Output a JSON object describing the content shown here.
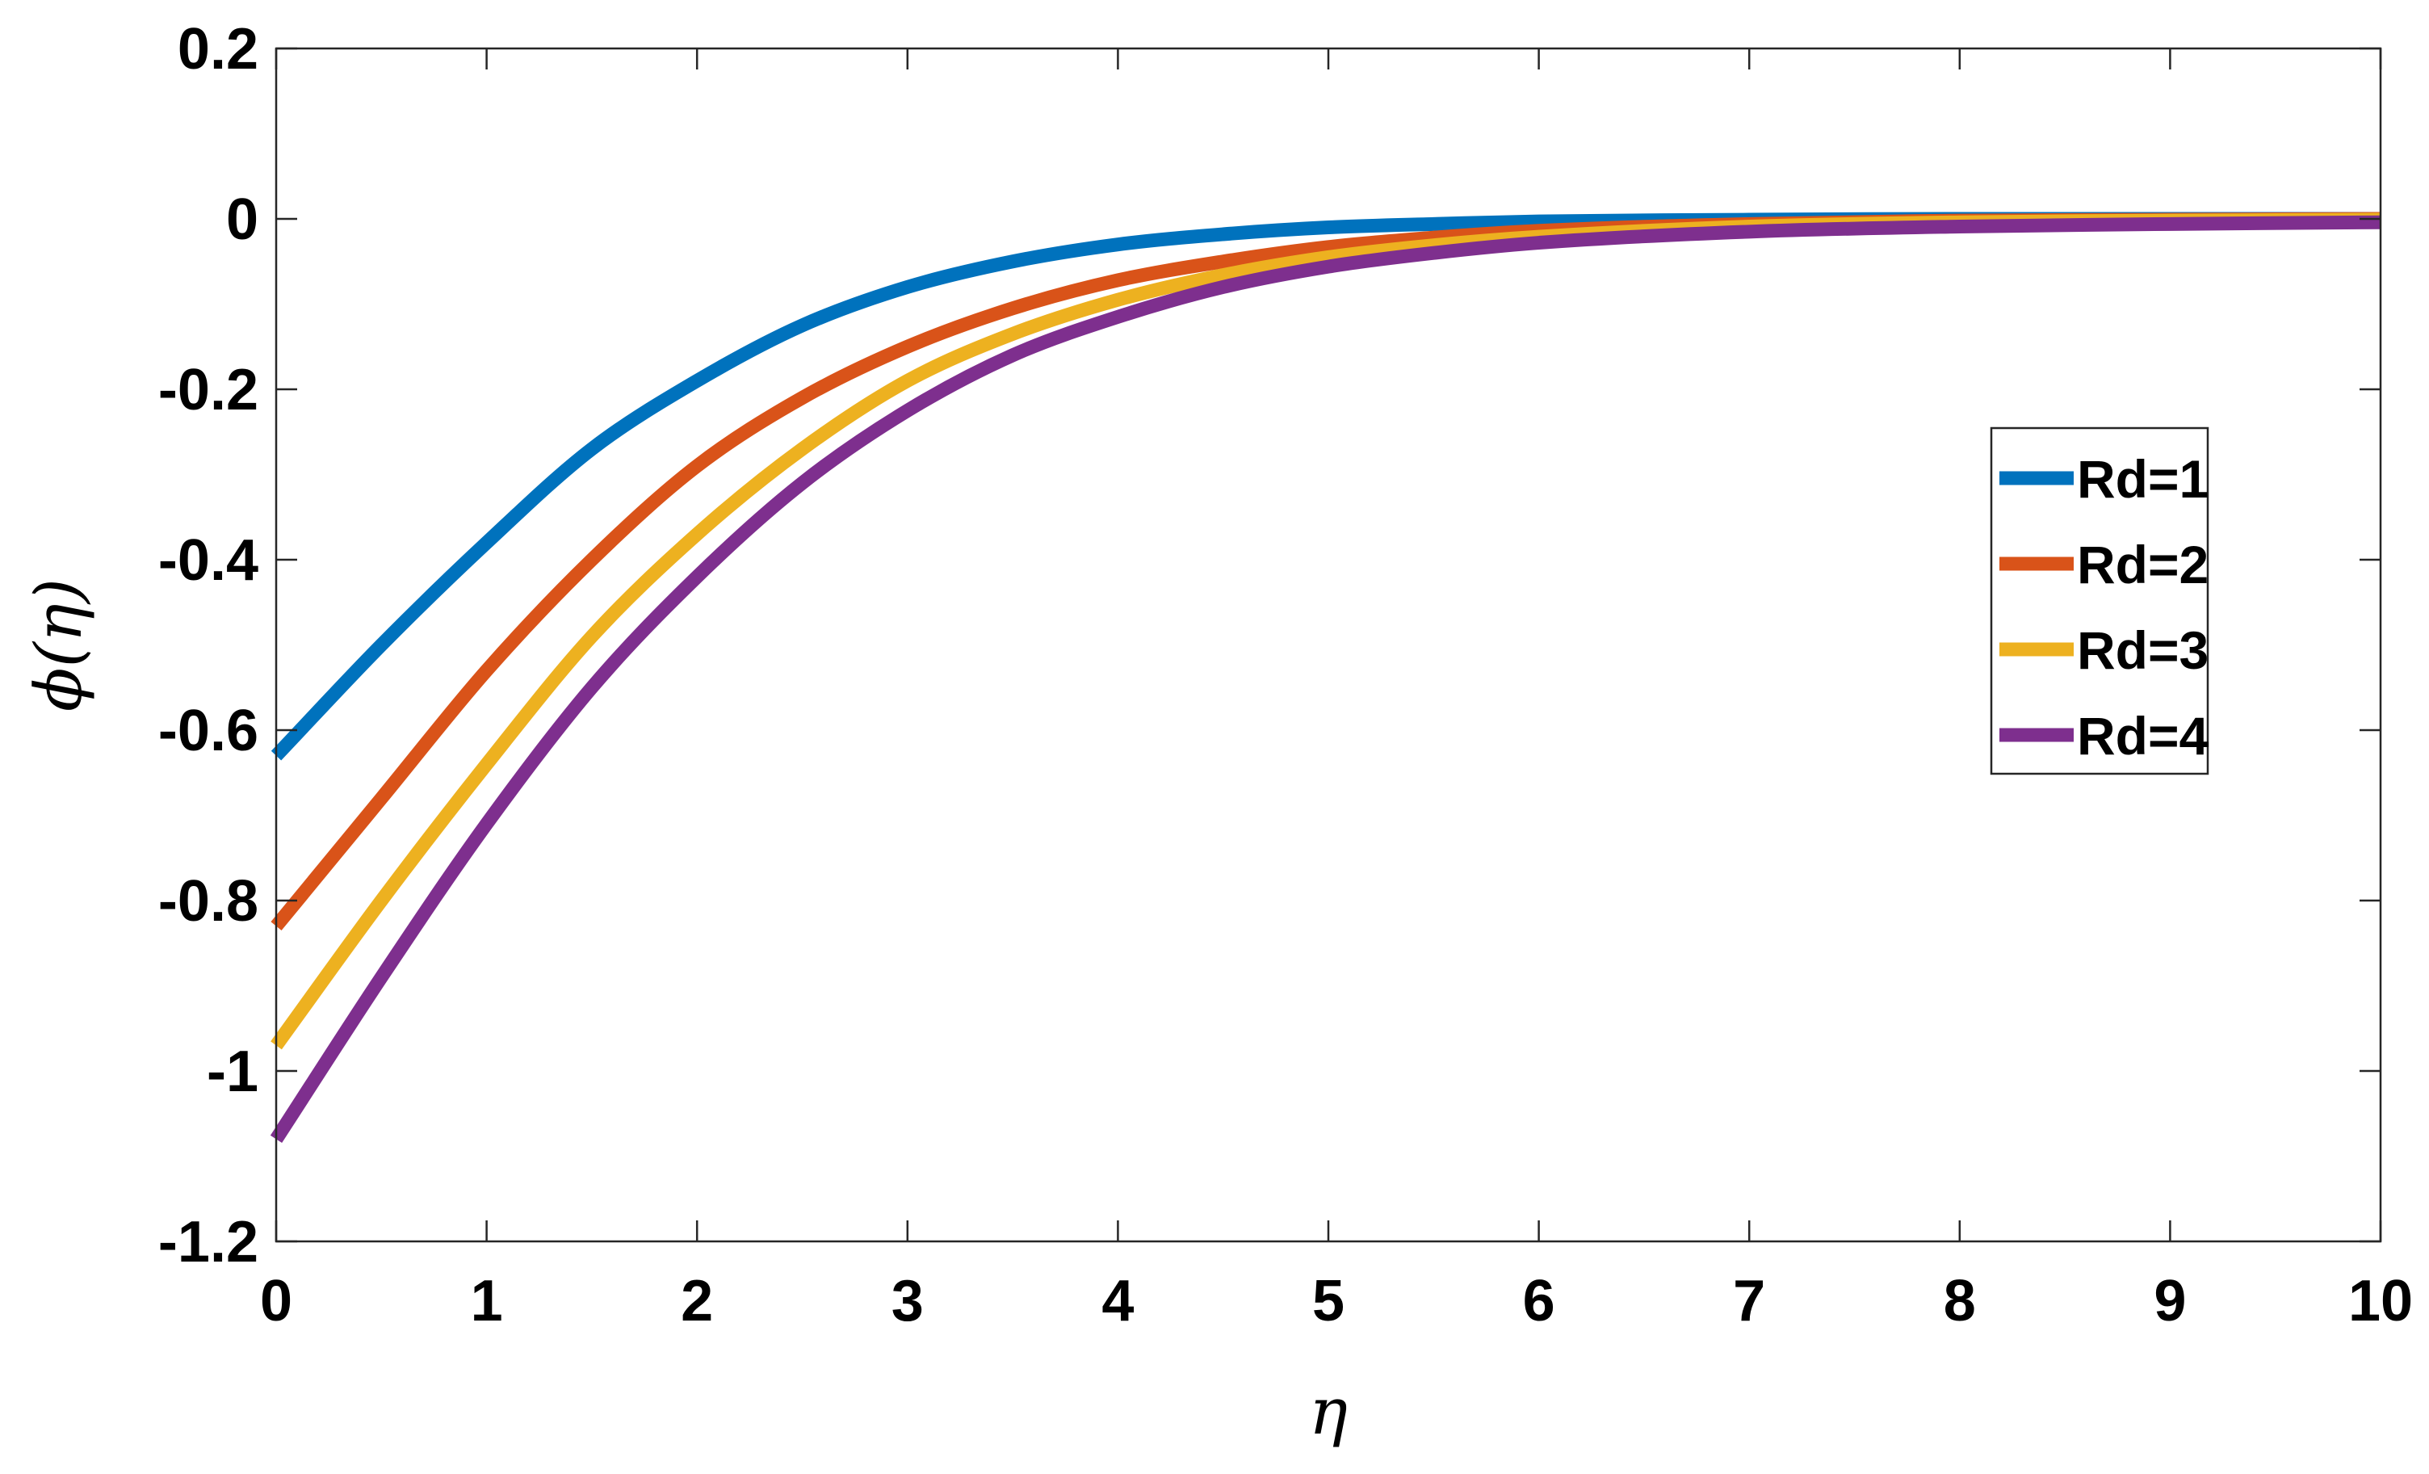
{
  "chart_data": {
    "type": "line",
    "xlabel": "η",
    "ylabel": "ϕ(η)",
    "xlim": [
      0,
      10
    ],
    "ylim": [
      -1.2,
      0.2
    ],
    "xticks": [
      "0",
      "1",
      "2",
      "3",
      "4",
      "5",
      "6",
      "7",
      "8",
      "9",
      "10"
    ],
    "yticks": [
      "0.2",
      "0",
      "-0.2",
      "-0.4",
      "-0.6",
      "-0.8",
      "-1",
      "-1.2"
    ],
    "grid": false,
    "legend_position": "right",
    "x": [
      0,
      0.5,
      1,
      1.5,
      2,
      2.5,
      3,
      3.5,
      4,
      4.5,
      5,
      5.5,
      6,
      7,
      8,
      9,
      10
    ],
    "series": [
      {
        "name": "Rd=1",
        "color": "#0072BD",
        "values": [
          -0.63,
          -0.5,
          -0.38,
          -0.27,
          -0.19,
          -0.125,
          -0.08,
          -0.05,
          -0.03,
          -0.018,
          -0.01,
          -0.006,
          -0.003,
          -0.001,
          0.0,
          0.0,
          0.0
        ]
      },
      {
        "name": "Rd=2",
        "color": "#D95319",
        "values": [
          -0.83,
          -0.68,
          -0.53,
          -0.4,
          -0.29,
          -0.21,
          -0.15,
          -0.105,
          -0.072,
          -0.05,
          -0.033,
          -0.022,
          -0.014,
          -0.006,
          -0.002,
          -0.001,
          0.0
        ]
      },
      {
        "name": "Rd=3",
        "color": "#EDB120",
        "values": [
          -0.97,
          -0.8,
          -0.64,
          -0.49,
          -0.37,
          -0.27,
          -0.19,
          -0.135,
          -0.095,
          -0.066,
          -0.045,
          -0.031,
          -0.021,
          -0.009,
          -0.004,
          -0.002,
          -0.001
        ]
      },
      {
        "name": "Rd=4",
        "color": "#7E2F8E",
        "values": [
          -1.08,
          -0.89,
          -0.71,
          -0.55,
          -0.42,
          -0.31,
          -0.225,
          -0.16,
          -0.115,
          -0.08,
          -0.056,
          -0.04,
          -0.028,
          -0.015,
          -0.009,
          -0.006,
          -0.004
        ]
      }
    ]
  }
}
